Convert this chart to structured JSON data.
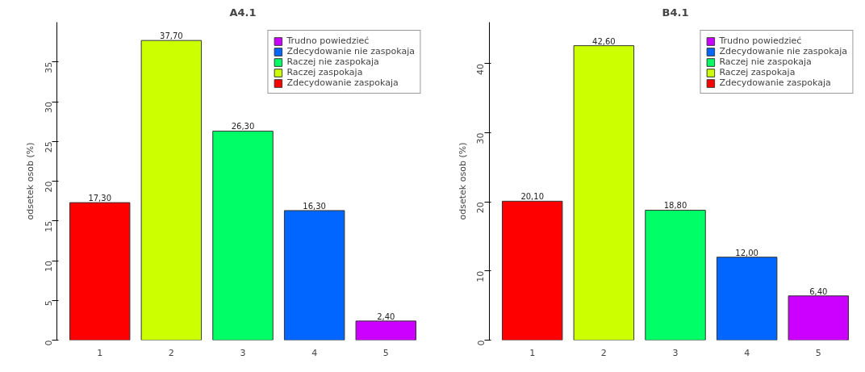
{
  "chart_data": [
    {
      "type": "bar",
      "title": "A4.1",
      "ylabel": "odsetek osob (%)",
      "categories": [
        "1",
        "2",
        "3",
        "4",
        "5"
      ],
      "ylim": [
        0,
        40
      ],
      "yticks": [
        0,
        5,
        10,
        15,
        20,
        25,
        30,
        35
      ],
      "grid": false,
      "legend": "top right",
      "series": [
        {
          "name": "Trudno powiedzieć",
          "color": "#cc00ff",
          "values": [
            null,
            null,
            null,
            null,
            2.4
          ],
          "value_labels": [
            null,
            null,
            null,
            null,
            "2,40"
          ]
        },
        {
          "name": "Zdecydowanie nie zaspokaja",
          "color": "#0066ff",
          "values": [
            null,
            null,
            null,
            16.3,
            null
          ],
          "value_labels": [
            null,
            null,
            null,
            "16,30",
            null
          ]
        },
        {
          "name": "Raczej nie zaspokaja",
          "color": "#00ff66",
          "values": [
            null,
            null,
            26.3,
            null,
            null
          ],
          "value_labels": [
            null,
            null,
            "26,30",
            null,
            null
          ]
        },
        {
          "name": "Raczej zaspokaja",
          "color": "#ccff00",
          "values": [
            null,
            37.7,
            null,
            null,
            null
          ],
          "value_labels": [
            null,
            "37,70",
            null,
            null,
            null
          ]
        },
        {
          "name": "Zdecydowanie zaspokaja",
          "color": "#ff0000",
          "values": [
            17.3,
            null,
            null,
            null,
            null
          ],
          "value_labels": [
            "17,30",
            null,
            null,
            null,
            null
          ]
        }
      ]
    },
    {
      "type": "bar",
      "title": "B4.1",
      "ylabel": "odsetek osob (%)",
      "categories": [
        "1",
        "2",
        "3",
        "4",
        "5"
      ],
      "ylim": [
        0,
        46
      ],
      "yticks": [
        0,
        10,
        20,
        30,
        40
      ],
      "grid": false,
      "legend": "top right",
      "series": [
        {
          "name": "Trudno powiedzieć",
          "color": "#cc00ff",
          "values": [
            null,
            null,
            null,
            null,
            6.4
          ],
          "value_labels": [
            null,
            null,
            null,
            null,
            "6,40"
          ]
        },
        {
          "name": "Zdecydowanie nie zaspokaja",
          "color": "#0066ff",
          "values": [
            null,
            null,
            null,
            12.0,
            null
          ],
          "value_labels": [
            null,
            null,
            null,
            "12,00",
            null
          ]
        },
        {
          "name": "Raczej nie zaspokaja",
          "color": "#00ff66",
          "values": [
            null,
            null,
            18.8,
            null,
            null
          ],
          "value_labels": [
            null,
            null,
            "18,80",
            null,
            null
          ]
        },
        {
          "name": "Raczej zaspokaja",
          "color": "#ccff00",
          "values": [
            null,
            42.6,
            null,
            null,
            null
          ],
          "value_labels": [
            null,
            "42,60",
            null,
            null,
            null
          ]
        },
        {
          "name": "Zdecydowanie zaspokaja",
          "color": "#ff0000",
          "values": [
            20.1,
            null,
            null,
            null,
            null
          ],
          "value_labels": [
            "20,10",
            null,
            null,
            null,
            null
          ]
        }
      ]
    }
  ]
}
